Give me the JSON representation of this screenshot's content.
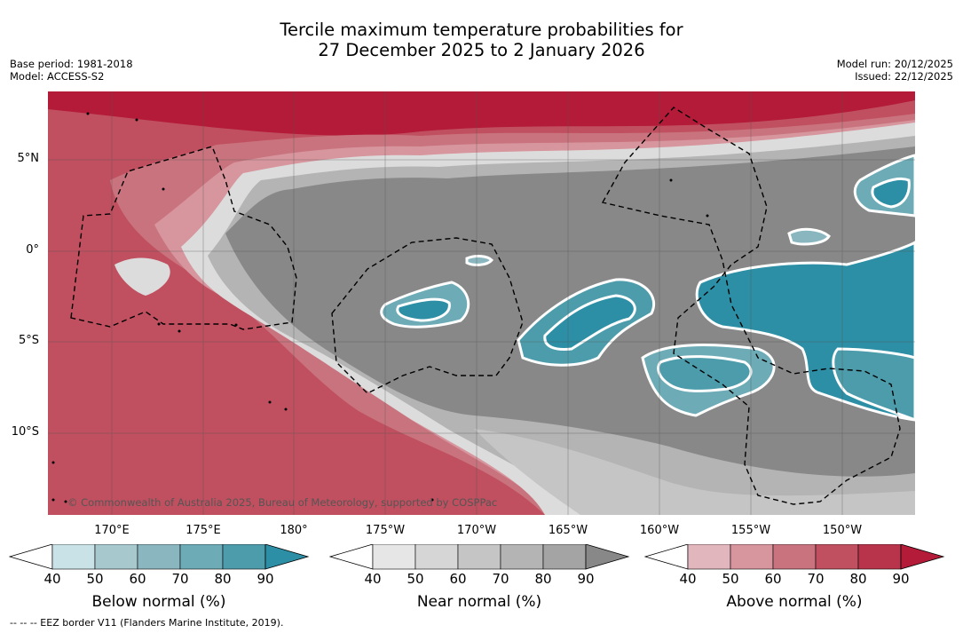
{
  "title": {
    "line1": "Tercile maximum temperature probabilities for",
    "line2": "27 December 2025 to 2 January 2026"
  },
  "meta_left": {
    "base_period": "Base period: 1981-2018",
    "model": "Model: ACCESS-S2"
  },
  "meta_right": {
    "model_run": "Model run: 20/12/2025",
    "issued": "Issued: 22/12/2025"
  },
  "map": {
    "lat_labels": [
      "5°N",
      "0°",
      "5°S",
      "10°S"
    ],
    "lon_labels": [
      "170°E",
      "175°E",
      "180°",
      "175°W",
      "170°W",
      "165°W",
      "160°W",
      "155°W",
      "150°W"
    ],
    "credit": "© Commonwealth of Australia 2025, Bureau of Meteorology, supported by COSPPac",
    "colors": {
      "above_normal": "#b31b39",
      "near_normal": "#888888",
      "below_normal": "#2d8fa5",
      "coastline": "#000000"
    }
  },
  "colorbars": {
    "ticks": [
      "40",
      "50",
      "60",
      "70",
      "80",
      "90"
    ],
    "below": {
      "title": "Below normal (%)",
      "colors": [
        "#ffffff",
        "#c9e2e8",
        "#a7c9ce",
        "#8ab7bf",
        "#6dabb6",
        "#4d9cab",
        "#2d8fa5"
      ]
    },
    "near": {
      "title": "Near normal (%)",
      "colors": [
        "#ffffff",
        "#e6e6e6",
        "#d6d6d6",
        "#c5c5c5",
        "#b4b4b4",
        "#a4a4a4",
        "#888888"
      ]
    },
    "above": {
      "title": "Above normal (%)",
      "colors": [
        "#ffffff",
        "#e1b7bd",
        "#d7959d",
        "#c9737e",
        "#c0505f",
        "#b8344a",
        "#b31b39"
      ]
    }
  },
  "footnote": "-- -- -- EEZ border V11 (Flanders Marine Institute, 2019)."
}
